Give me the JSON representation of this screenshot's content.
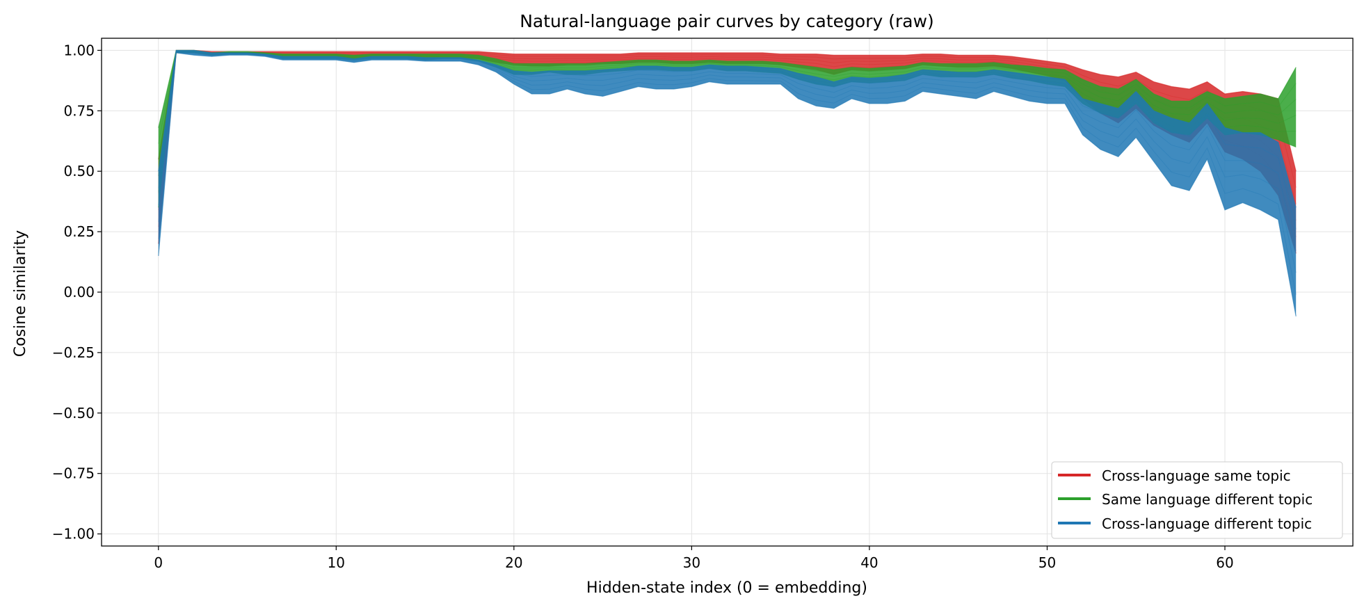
{
  "chart_data": {
    "type": "line",
    "title": "Natural-language pair curves by category (raw)",
    "xlabel": "Hidden-state index (0 = embedding)",
    "ylabel": "Cosine similarity",
    "xlim": [
      -3.2,
      67.2
    ],
    "ylim": [
      -1.05,
      1.05
    ],
    "xticks": [
      0,
      10,
      20,
      30,
      40,
      50,
      60
    ],
    "xtick_labels": [
      "0",
      "10",
      "20",
      "30",
      "40",
      "50",
      "60"
    ],
    "yticks": [
      1.0,
      0.75,
      0.5,
      0.25,
      0.0,
      -0.25,
      -0.5,
      -0.75,
      -1.0
    ],
    "ytick_labels": [
      "1.00",
      "0.75",
      "0.50",
      "0.25",
      "0.00",
      "−0.25",
      "−0.50",
      "−0.75",
      "−1.00"
    ],
    "grid": true,
    "legend_position": "bottom-right",
    "x": [
      0,
      1,
      2,
      3,
      4,
      5,
      6,
      7,
      8,
      9,
      10,
      11,
      12,
      13,
      14,
      15,
      16,
      17,
      18,
      19,
      20,
      21,
      22,
      23,
      24,
      25,
      26,
      27,
      28,
      29,
      30,
      31,
      32,
      33,
      34,
      35,
      36,
      37,
      38,
      39,
      40,
      41,
      42,
      43,
      44,
      45,
      46,
      47,
      48,
      49,
      50,
      51,
      52,
      53,
      54,
      55,
      56,
      57,
      58,
      59,
      60,
      61,
      62,
      63,
      64
    ],
    "series": [
      {
        "name": "Cross-language same topic",
        "color": "#d62728",
        "upper": [
          0.55,
          1.0,
          1.0,
          0.995,
          0.995,
          0.995,
          0.995,
          0.995,
          0.995,
          0.995,
          0.995,
          0.995,
          0.995,
          0.995,
          0.995,
          0.995,
          0.995,
          0.995,
          0.995,
          0.99,
          0.985,
          0.985,
          0.985,
          0.985,
          0.985,
          0.985,
          0.985,
          0.99,
          0.99,
          0.99,
          0.99,
          0.99,
          0.99,
          0.99,
          0.99,
          0.985,
          0.985,
          0.985,
          0.98,
          0.98,
          0.98,
          0.98,
          0.98,
          0.985,
          0.985,
          0.98,
          0.98,
          0.98,
          0.975,
          0.965,
          0.955,
          0.945,
          0.92,
          0.9,
          0.89,
          0.91,
          0.87,
          0.85,
          0.84,
          0.87,
          0.82,
          0.83,
          0.82,
          0.8,
          0.5
        ],
        "lower": [
          0.2,
          0.99,
          0.99,
          0.98,
          0.985,
          0.985,
          0.98,
          0.97,
          0.97,
          0.97,
          0.97,
          0.965,
          0.97,
          0.97,
          0.97,
          0.965,
          0.97,
          0.97,
          0.965,
          0.95,
          0.94,
          0.935,
          0.935,
          0.94,
          0.94,
          0.945,
          0.945,
          0.95,
          0.95,
          0.945,
          0.945,
          0.95,
          0.945,
          0.945,
          0.945,
          0.94,
          0.93,
          0.92,
          0.9,
          0.92,
          0.915,
          0.92,
          0.925,
          0.94,
          0.935,
          0.93,
          0.93,
          0.935,
          0.925,
          0.91,
          0.895,
          0.875,
          0.8,
          0.74,
          0.7,
          0.76,
          0.69,
          0.65,
          0.62,
          0.7,
          0.58,
          0.55,
          0.5,
          0.4,
          0.16
        ]
      },
      {
        "name": "Same language different topic",
        "color": "#2ca02c",
        "upper": [
          0.68,
          1.0,
          1.0,
          0.99,
          0.995,
          0.995,
          0.99,
          0.985,
          0.985,
          0.985,
          0.985,
          0.98,
          0.985,
          0.985,
          0.985,
          0.985,
          0.985,
          0.985,
          0.98,
          0.965,
          0.945,
          0.945,
          0.945,
          0.945,
          0.945,
          0.95,
          0.955,
          0.96,
          0.96,
          0.955,
          0.955,
          0.96,
          0.955,
          0.955,
          0.955,
          0.95,
          0.94,
          0.93,
          0.92,
          0.93,
          0.925,
          0.93,
          0.935,
          0.95,
          0.945,
          0.945,
          0.945,
          0.95,
          0.94,
          0.935,
          0.925,
          0.92,
          0.88,
          0.85,
          0.84,
          0.88,
          0.82,
          0.79,
          0.79,
          0.83,
          0.8,
          0.81,
          0.82,
          0.8,
          0.93
        ],
        "lower": [
          0.35,
          0.99,
          0.99,
          0.98,
          0.985,
          0.985,
          0.98,
          0.965,
          0.965,
          0.965,
          0.965,
          0.96,
          0.965,
          0.965,
          0.965,
          0.96,
          0.965,
          0.965,
          0.955,
          0.93,
          0.9,
          0.9,
          0.91,
          0.9,
          0.9,
          0.91,
          0.915,
          0.92,
          0.92,
          0.915,
          0.915,
          0.925,
          0.915,
          0.915,
          0.91,
          0.905,
          0.88,
          0.86,
          0.85,
          0.87,
          0.865,
          0.87,
          0.875,
          0.9,
          0.89,
          0.89,
          0.89,
          0.9,
          0.885,
          0.875,
          0.86,
          0.85,
          0.78,
          0.74,
          0.72,
          0.78,
          0.7,
          0.66,
          0.65,
          0.72,
          0.65,
          0.66,
          0.65,
          0.63,
          0.6
        ]
      },
      {
        "name": "Cross-language different topic",
        "color": "#1f77b4",
        "upper": [
          0.5,
          1.0,
          1.0,
          0.99,
          0.99,
          0.99,
          0.985,
          0.975,
          0.975,
          0.975,
          0.975,
          0.965,
          0.975,
          0.975,
          0.975,
          0.97,
          0.97,
          0.97,
          0.96,
          0.94,
          0.915,
          0.91,
          0.915,
          0.915,
          0.915,
          0.92,
          0.925,
          0.935,
          0.935,
          0.93,
          0.93,
          0.94,
          0.935,
          0.935,
          0.93,
          0.925,
          0.905,
          0.89,
          0.87,
          0.89,
          0.885,
          0.89,
          0.9,
          0.92,
          0.915,
          0.91,
          0.91,
          0.92,
          0.91,
          0.9,
          0.89,
          0.88,
          0.8,
          0.78,
          0.76,
          0.83,
          0.75,
          0.72,
          0.7,
          0.78,
          0.68,
          0.66,
          0.66,
          0.62,
          0.35
        ],
        "lower": [
          0.15,
          0.99,
          0.98,
          0.975,
          0.98,
          0.98,
          0.975,
          0.96,
          0.96,
          0.96,
          0.96,
          0.95,
          0.96,
          0.96,
          0.96,
          0.955,
          0.955,
          0.955,
          0.94,
          0.91,
          0.86,
          0.82,
          0.82,
          0.84,
          0.82,
          0.81,
          0.83,
          0.85,
          0.84,
          0.84,
          0.85,
          0.87,
          0.86,
          0.86,
          0.86,
          0.86,
          0.8,
          0.77,
          0.76,
          0.8,
          0.78,
          0.78,
          0.79,
          0.83,
          0.82,
          0.81,
          0.8,
          0.83,
          0.81,
          0.79,
          0.78,
          0.78,
          0.65,
          0.59,
          0.56,
          0.64,
          0.54,
          0.44,
          0.42,
          0.55,
          0.34,
          0.37,
          0.34,
          0.3,
          -0.1
        ]
      }
    ]
  }
}
